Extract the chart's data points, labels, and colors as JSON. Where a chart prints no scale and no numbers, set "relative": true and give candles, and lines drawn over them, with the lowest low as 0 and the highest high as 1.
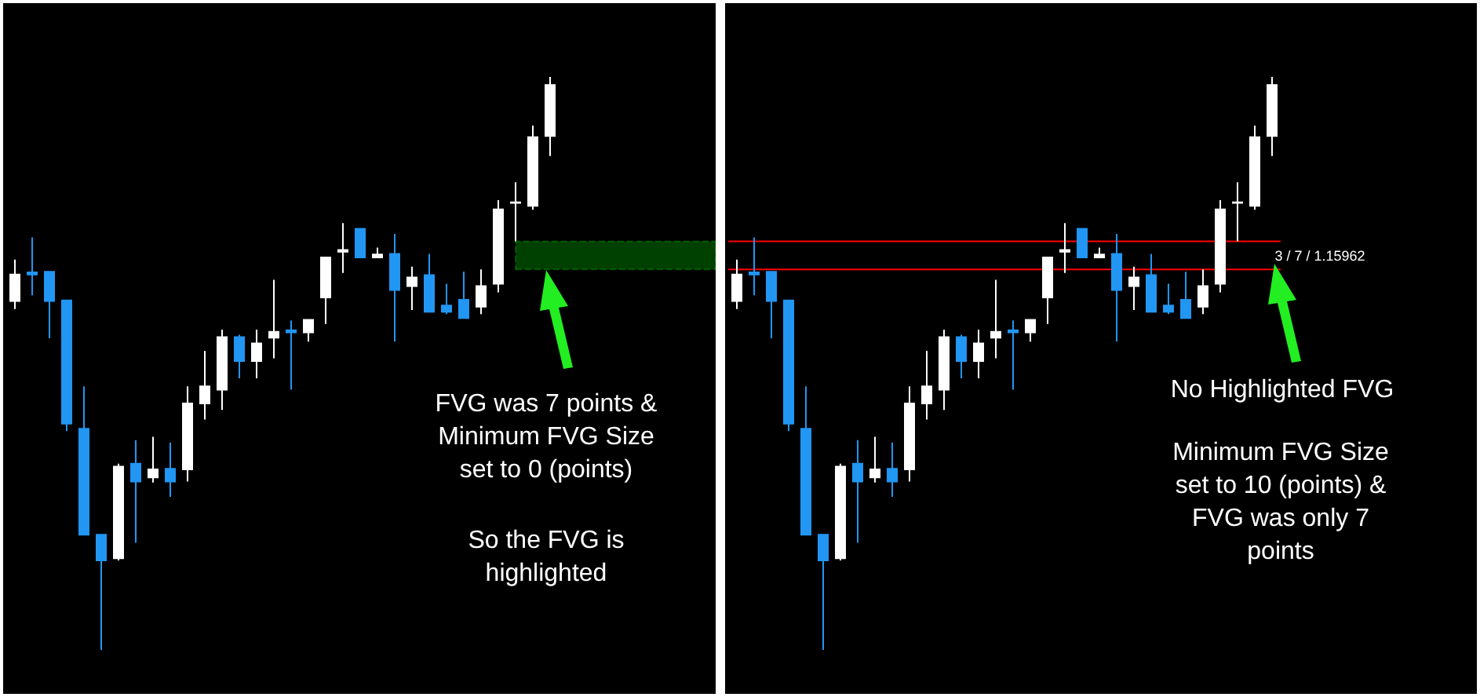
{
  "chart_data": [
    {
      "type": "candlestick",
      "relative": true,
      "categories": [
        null,
        null,
        null,
        null,
        null,
        null,
        null,
        null,
        null,
        null,
        null,
        null,
        null,
        null,
        null,
        null,
        null,
        null,
        null,
        null,
        null,
        null,
        null,
        null,
        null,
        null,
        null,
        null,
        null,
        null,
        null,
        null
      ],
      "ohlc": [
        [
          0.609,
          0.681,
          0.595,
          0.655
        ],
        [
          0.659,
          0.72,
          0.619,
          0.655
        ],
        [
          0.66,
          0.66,
          0.544,
          0.609
        ],
        [
          0.61,
          0.61,
          0.382,
          0.395
        ],
        [
          0.386,
          0.46,
          0.201,
          0.201
        ],
        [
          0.201,
          0.201,
          0,
          0.156
        ],
        [
          0.16,
          0.325,
          0.156,
          0.32
        ],
        [
          0.325,
          0.366,
          0.187,
          0.294
        ],
        [
          0.301,
          0.372,
          0.292,
          0.315
        ],
        [
          0.316,
          0.362,
          0.267,
          0.294
        ],
        [
          0.315,
          0.46,
          0.294,
          0.43
        ],
        [
          0.43,
          0.522,
          0.402,
          0.46
        ],
        [
          0.454,
          0.559,
          0.419,
          0.546
        ],
        [
          0.546,
          0.55,
          0.474,
          0.504
        ],
        [
          0.504,
          0.559,
          0.474,
          0.535
        ],
        [
          0.545,
          0.646,
          0.509,
          0.555
        ],
        [
          0.558,
          0.575,
          0.454,
          0.554
        ],
        [
          0.554,
          0.576,
          0.538,
          0.576
        ],
        [
          0.615,
          0.685,
          0.569,
          0.685
        ],
        [
          0.695,
          0.745,
          0.658,
          0.698
        ],
        [
          0.735,
          0.735,
          0.685,
          0.685
        ],
        [
          0.685,
          0.702,
          0.684,
          0.69
        ],
        [
          0.691,
          0.726,
          0.538,
          0.628
        ],
        [
          0.635,
          0.669,
          0.593,
          0.65
        ],
        [
          0.654,
          0.691,
          0.59,
          0.59
        ],
        [
          0.601,
          0.639,
          0.586,
          0.59
        ],
        [
          0.611,
          0.66,
          0.579,
          0.579
        ],
        [
          0.599,
          0.664,
          0.586,
          0.635
        ],
        [
          0.639,
          0.785,
          0.624,
          0.769
        ],
        [
          0.78,
          0.816,
          0.713,
          0.781
        ],
        [
          0.775,
          0.915,
          0.768,
          0.895
        ],
        [
          0.897,
          1,
          0.862,
          0.986
        ]
      ],
      "colors": [
        "#ffffff",
        "#2196f3",
        "#2196f3",
        "#2196f3",
        "#2196f3",
        "#2196f3",
        "#ffffff",
        "#2196f3",
        "#ffffff",
        "#2196f3",
        "#ffffff",
        "#ffffff",
        "#ffffff",
        "#2196f3",
        "#ffffff",
        "#ffffff",
        "#2196f3",
        "#ffffff",
        "#ffffff",
        "#ffffff",
        "#2196f3",
        "#ffffff",
        "#2196f3",
        "#ffffff",
        "#2196f3",
        "#2196f3",
        "#2196f3",
        "#ffffff",
        "#ffffff",
        "#ffffff",
        "#ffffff",
        "#ffffff"
      ],
      "bands": [
        {
          "axis": "y",
          "from": 0.664,
          "to": 0.713,
          "color": "#00ff00"
        }
      ],
      "annotations": [
        "FVG was 7 points & Minimum FVG Size set to 0 (points)",
        "So the FVG is highlighted"
      ]
    },
    {
      "type": "candlestick",
      "relative": true,
      "categories": [
        null,
        null,
        null,
        null,
        null,
        null,
        null,
        null,
        null,
        null,
        null,
        null,
        null,
        null,
        null,
        null,
        null,
        null,
        null,
        null,
        null,
        null,
        null,
        null,
        null,
        null,
        null,
        null,
        null,
        null,
        null,
        null
      ],
      "ohlc": [
        [
          0.609,
          0.681,
          0.595,
          0.655
        ],
        [
          0.659,
          0.72,
          0.619,
          0.655
        ],
        [
          0.66,
          0.66,
          0.544,
          0.609
        ],
        [
          0.61,
          0.61,
          0.382,
          0.395
        ],
        [
          0.386,
          0.46,
          0.201,
          0.201
        ],
        [
          0.201,
          0.201,
          0,
          0.156
        ],
        [
          0.16,
          0.325,
          0.156,
          0.32
        ],
        [
          0.325,
          0.366,
          0.187,
          0.294
        ],
        [
          0.301,
          0.372,
          0.292,
          0.315
        ],
        [
          0.316,
          0.362,
          0.267,
          0.294
        ],
        [
          0.315,
          0.46,
          0.294,
          0.43
        ],
        [
          0.43,
          0.522,
          0.402,
          0.46
        ],
        [
          0.454,
          0.559,
          0.419,
          0.546
        ],
        [
          0.546,
          0.55,
          0.474,
          0.504
        ],
        [
          0.504,
          0.559,
          0.474,
          0.535
        ],
        [
          0.545,
          0.646,
          0.509,
          0.555
        ],
        [
          0.558,
          0.575,
          0.454,
          0.554
        ],
        [
          0.554,
          0.576,
          0.538,
          0.576
        ],
        [
          0.615,
          0.685,
          0.569,
          0.685
        ],
        [
          0.695,
          0.745,
          0.658,
          0.698
        ],
        [
          0.735,
          0.735,
          0.685,
          0.685
        ],
        [
          0.685,
          0.702,
          0.684,
          0.69
        ],
        [
          0.691,
          0.726,
          0.538,
          0.628
        ],
        [
          0.635,
          0.669,
          0.593,
          0.65
        ],
        [
          0.654,
          0.691,
          0.59,
          0.59
        ],
        [
          0.601,
          0.639,
          0.586,
          0.59
        ],
        [
          0.611,
          0.66,
          0.579,
          0.579
        ],
        [
          0.599,
          0.664,
          0.586,
          0.635
        ],
        [
          0.639,
          0.785,
          0.624,
          0.769
        ],
        [
          0.78,
          0.816,
          0.713,
          0.781
        ],
        [
          0.775,
          0.915,
          0.768,
          0.895
        ],
        [
          0.897,
          1,
          0.862,
          0.986
        ]
      ],
      "colors": [
        "#ffffff",
        "#2196f3",
        "#2196f3",
        "#2196f3",
        "#2196f3",
        "#2196f3",
        "#ffffff",
        "#2196f3",
        "#ffffff",
        "#2196f3",
        "#ffffff",
        "#ffffff",
        "#ffffff",
        "#2196f3",
        "#ffffff",
        "#ffffff",
        "#2196f3",
        "#ffffff",
        "#ffffff",
        "#ffffff",
        "#2196f3",
        "#ffffff",
        "#2196f3",
        "#ffffff",
        "#2196f3",
        "#2196f3",
        "#2196f3",
        "#ffffff",
        "#ffffff",
        "#ffffff",
        "#ffffff",
        "#ffffff"
      ],
      "ref_lines": [
        {
          "axis": "y",
          "value": 0.664,
          "color": "#ff0000"
        },
        {
          "axis": "y",
          "value": 0.713,
          "color": "#ff0000"
        }
      ],
      "annotations": [
        "3 / 7 / 1.15962",
        "No Highlighted FVG",
        "Minimum FVG Size set to 10 (points) & FVG was only 7 points"
      ]
    }
  ]
}
